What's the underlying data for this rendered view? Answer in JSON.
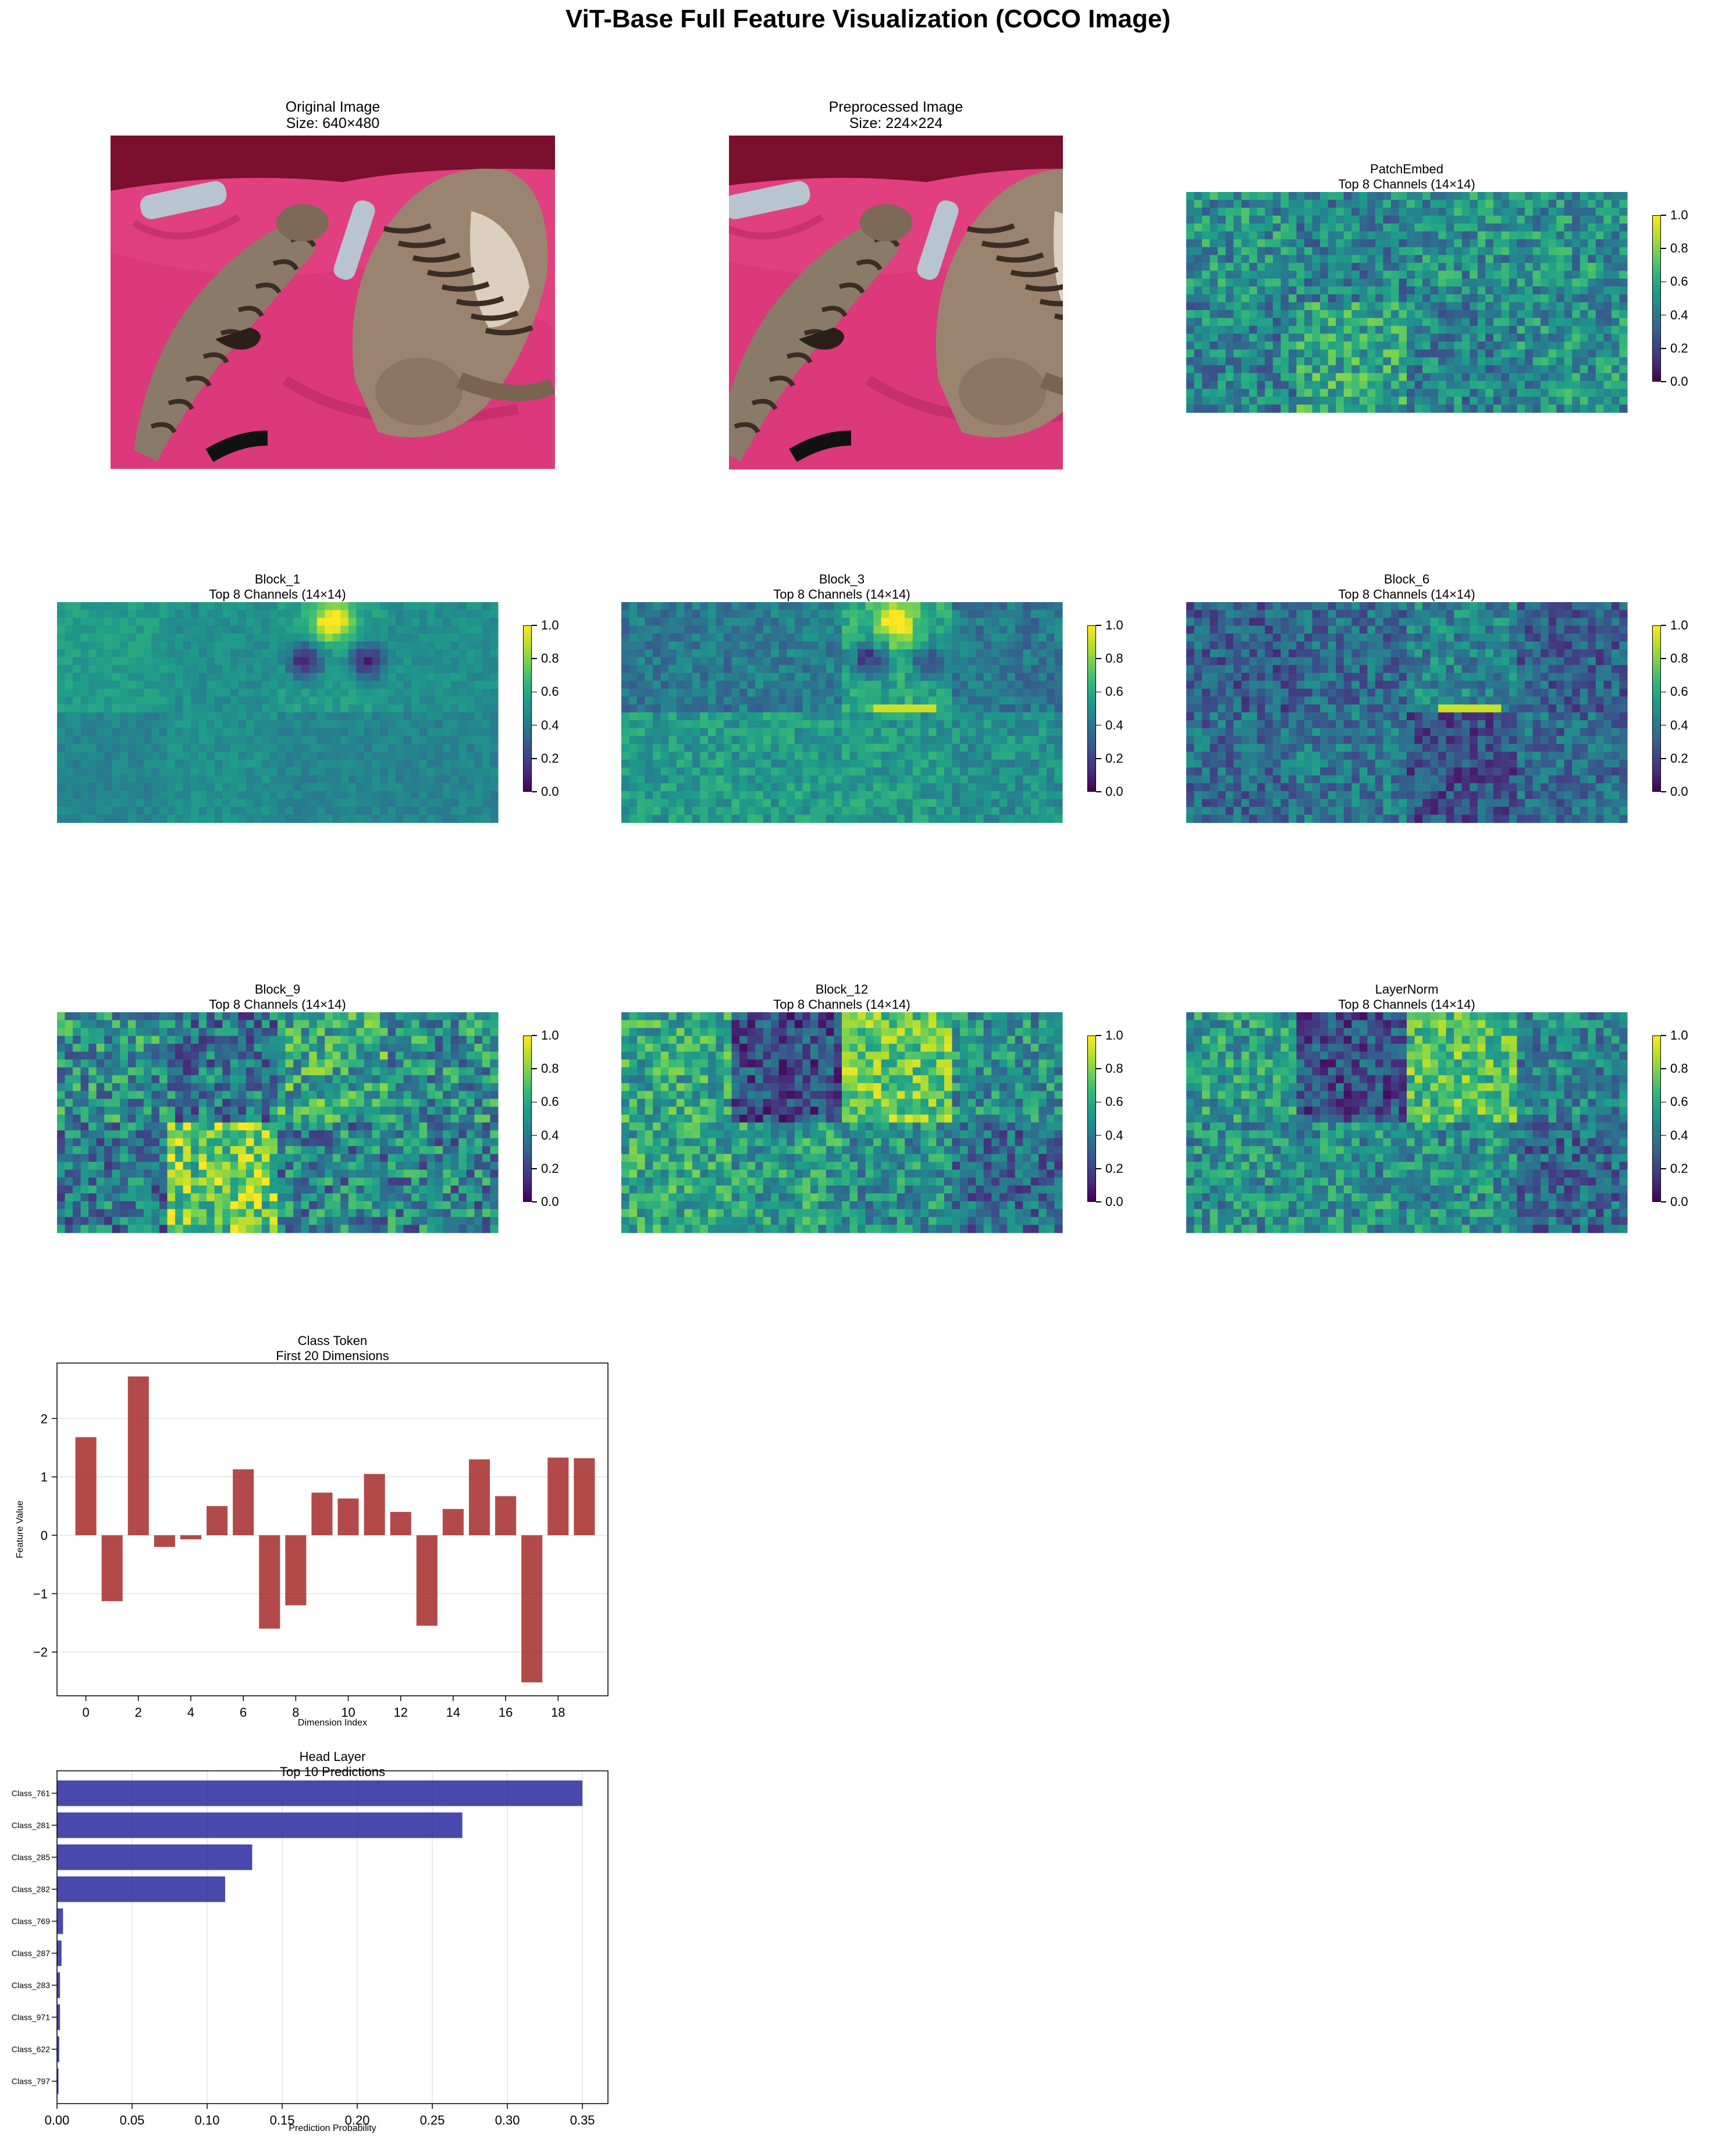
{
  "figure_title": "ViT-Base Full Feature Visualization (COCO Image)",
  "images": [
    {
      "title": "Original Image",
      "subtitle": "Size: 640×480",
      "alt_icon": "cats-photo-icon"
    },
    {
      "title": "Preprocessed Image",
      "subtitle": "Size: 224×224",
      "alt_icon": "cats-photo-cropped-icon"
    }
  ],
  "heatmaps": [
    {
      "title": "PatchEmbed",
      "subtitle": "Top 8 Channels (14×14)"
    },
    {
      "title": "Block_1",
      "subtitle": "Top 8 Channels (14×14)"
    },
    {
      "title": "Block_3",
      "subtitle": "Top 8 Channels (14×14)"
    },
    {
      "title": "Block_6",
      "subtitle": "Top 8 Channels (14×14)"
    },
    {
      "title": "Block_9",
      "subtitle": "Top 8 Channels (14×14)"
    },
    {
      "title": "Block_12",
      "subtitle": "Top 8 Channels (14×14)"
    },
    {
      "title": "LayerNorm",
      "subtitle": "Top 8 Channels (14×14)"
    }
  ],
  "colorbar": {
    "colormap": "viridis",
    "range": [
      0.0,
      1.0
    ],
    "ticks": [
      "0.0",
      "0.2",
      "0.4",
      "0.6",
      "0.8",
      "1.0"
    ]
  },
  "chart_data": [
    {
      "type": "bar",
      "title": "Class Token",
      "subtitle": "First 20 Dimensions",
      "xlabel": "Dimension Index",
      "ylabel": "Feature Value",
      "categories": [
        0,
        1,
        2,
        3,
        4,
        5,
        6,
        7,
        8,
        9,
        10,
        11,
        12,
        13,
        14,
        15,
        16,
        17,
        18,
        19
      ],
      "values": [
        1.68,
        -1.13,
        2.72,
        -0.2,
        -0.07,
        0.5,
        1.13,
        -1.6,
        -1.2,
        0.73,
        0.63,
        1.05,
        0.4,
        -1.55,
        0.45,
        1.3,
        0.67,
        -2.52,
        1.33,
        1.32
      ],
      "x_ticks": [
        "0",
        "2",
        "4",
        "6",
        "8",
        "10",
        "12",
        "14",
        "16",
        "18"
      ],
      "y_ticks": [
        "−2",
        "−1",
        "0",
        "1",
        "2"
      ],
      "ylim": [
        -2.75,
        2.95
      ],
      "color": "#a52a2a",
      "grid": "horizontal"
    },
    {
      "type": "bar",
      "orientation": "horizontal",
      "title": "Head Layer",
      "subtitle": "Top 10 Predictions",
      "xlabel": "Prediction Probability",
      "ylabel": "",
      "categories": [
        "Class_761",
        "Class_281",
        "Class_285",
        "Class_282",
        "Class_769",
        "Class_287",
        "Class_283",
        "Class_971",
        "Class_622",
        "Class_797"
      ],
      "values": [
        0.35,
        0.27,
        0.13,
        0.112,
        0.004,
        0.003,
        0.002,
        0.002,
        0.0015,
        0.001
      ],
      "x_ticks": [
        "0.00",
        "0.05",
        "0.10",
        "0.15",
        "0.20",
        "0.25",
        "0.30",
        "0.35"
      ],
      "xlim": [
        0,
        0.367
      ],
      "color": "#1c1c99",
      "grid": "vertical"
    }
  ]
}
